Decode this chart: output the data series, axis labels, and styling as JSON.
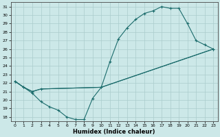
{
  "xlabel": "Humidex (Indice chaleur)",
  "xlim": [
    -0.5,
    23.5
  ],
  "ylim": [
    17.5,
    31.5
  ],
  "xticks": [
    0,
    1,
    2,
    3,
    4,
    5,
    6,
    7,
    8,
    9,
    10,
    11,
    12,
    13,
    14,
    15,
    16,
    17,
    18,
    19,
    20,
    21,
    22,
    23
  ],
  "yticks": [
    18,
    19,
    20,
    21,
    22,
    23,
    24,
    25,
    26,
    27,
    28,
    29,
    30,
    31
  ],
  "background_color": "#cce8e8",
  "line_color": "#1a6b6b",
  "grid_color": "#aacccc",
  "curve_upper_x": [
    0,
    1,
    2,
    3,
    10,
    11,
    12,
    13,
    14,
    15,
    16,
    17,
    18,
    19,
    20,
    21,
    22,
    23
  ],
  "curve_upper_y": [
    22.2,
    21.5,
    21.0,
    21.3,
    21.5,
    24.5,
    27.2,
    28.5,
    29.5,
    30.2,
    30.5,
    31.0,
    30.8,
    30.8,
    29.0,
    27.0,
    26.5,
    26.0
  ],
  "curve_lower_x": [
    0,
    1,
    2,
    3,
    4,
    5,
    6,
    7,
    8,
    9,
    10,
    23
  ],
  "curve_lower_y": [
    22.2,
    21.5,
    20.8,
    19.8,
    19.2,
    18.8,
    18.0,
    17.7,
    17.7,
    20.2,
    21.5,
    26.0
  ],
  "curve_base_x": [
    0,
    1,
    2,
    3,
    10,
    23
  ],
  "curve_base_y": [
    22.2,
    21.5,
    21.0,
    21.3,
    21.5,
    26.0
  ]
}
